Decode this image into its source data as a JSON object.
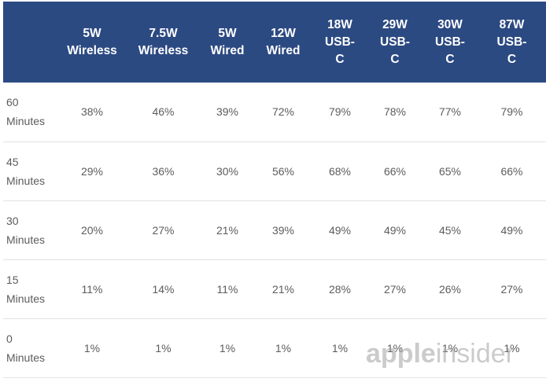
{
  "table": {
    "columns": [
      "",
      "5W\nWireless",
      "7.5W\nWireless",
      "5W\nWired",
      "12W\nWired",
      "18W\nUSB-\nC",
      "29W\nUSB-\nC",
      "30W\nUSB-\nC",
      "87W\nUSB-\nC"
    ],
    "rows": [
      {
        "label": "60\nMinutes",
        "values": [
          "38%",
          "46%",
          "39%",
          "72%",
          "79%",
          "78%",
          "77%",
          "79%"
        ]
      },
      {
        "label": "45\nMinutes",
        "values": [
          "29%",
          "36%",
          "30%",
          "56%",
          "68%",
          "66%",
          "65%",
          "66%"
        ]
      },
      {
        "label": "30\nMinutes",
        "values": [
          "20%",
          "27%",
          "21%",
          "39%",
          "49%",
          "49%",
          "45%",
          "49%"
        ]
      },
      {
        "label": "15\nMinutes",
        "values": [
          "11%",
          "14%",
          "11%",
          "21%",
          "28%",
          "27%",
          "26%",
          "27%"
        ]
      },
      {
        "label": "0\nMinutes",
        "values": [
          "1%",
          "1%",
          "1%",
          "1%",
          "1%",
          "1%",
          "1%",
          "1%"
        ]
      }
    ]
  },
  "watermark": {
    "part1": "apple",
    "part2": "insider"
  },
  "colors": {
    "header_bg": "#2c4a82",
    "header_text": "#ffffff",
    "cell_text": "#5c5c5c",
    "row_border": "#e2e2e2"
  }
}
